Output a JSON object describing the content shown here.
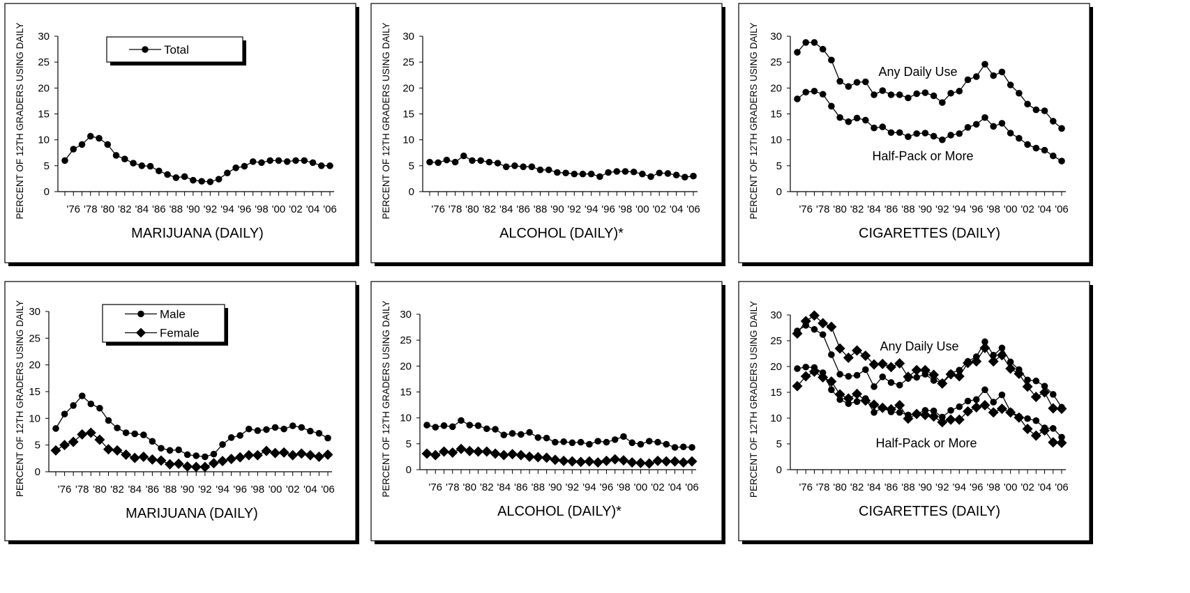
{
  "years_all": [
    1975,
    1976,
    1977,
    1978,
    1979,
    1980,
    1981,
    1982,
    1983,
    1984,
    1985,
    1986,
    1987,
    1988,
    1989,
    1990,
    1991,
    1992,
    1993,
    1994,
    1995,
    1996,
    1997,
    1998,
    1999,
    2000,
    2001,
    2002,
    2003,
    2004,
    2005,
    2006
  ],
  "x_tick_labels": [
    "'76",
    "'78",
    "'80",
    "'82",
    "'84",
    "'86",
    "'88",
    "'90",
    "'92",
    "'94",
    "'96",
    "'98",
    "'00",
    "'02",
    "'04",
    "'06"
  ],
  "y_ticks": [
    0,
    5,
    10,
    15,
    20,
    25,
    30
  ],
  "chart_data": [
    {
      "type": "line",
      "title": "MARIJUANA (DAILY)",
      "ylabel": "PERCENT OF 12TH GRADERS USING DAILY",
      "ylim": [
        0,
        30
      ],
      "x": [
        1975,
        1976,
        1977,
        1978,
        1979,
        1980,
        1981,
        1982,
        1983,
        1984,
        1985,
        1986,
        1987,
        1988,
        1989,
        1990,
        1991,
        1992,
        1993,
        1994,
        1995,
        1996,
        1997,
        1998,
        1999,
        2000,
        2001,
        2002,
        2003,
        2004,
        2005,
        2006
      ],
      "legend": "top-center",
      "series": [
        {
          "name": "Total",
          "marker": "circle",
          "values": [
            6.0,
            8.2,
            9.1,
            10.7,
            10.3,
            9.1,
            7.0,
            6.3,
            5.5,
            5.0,
            4.9,
            4.0,
            3.3,
            2.7,
            2.9,
            2.2,
            2.0,
            1.9,
            2.4,
            3.6,
            4.6,
            4.9,
            5.8,
            5.6,
            6.0,
            6.0,
            5.8,
            6.0,
            6.0,
            5.6,
            5.0,
            5.0
          ]
        }
      ]
    },
    {
      "type": "line",
      "title": "ALCOHOL (DAILY)*",
      "ylabel": "PERCENT OF 12TH GRADERS USING DAILY",
      "ylim": [
        0,
        30
      ],
      "x": [
        1975,
        1976,
        1977,
        1978,
        1979,
        1980,
        1981,
        1982,
        1983,
        1984,
        1985,
        1986,
        1987,
        1988,
        1989,
        1990,
        1991,
        1992,
        1993,
        1994,
        1995,
        1996,
        1997,
        1998,
        1999,
        2000,
        2001,
        2002,
        2003,
        2004,
        2005,
        2006
      ],
      "series": [
        {
          "name": "",
          "marker": "circle",
          "values": [
            5.7,
            5.6,
            6.1,
            5.7,
            6.9,
            6.0,
            6.0,
            5.7,
            5.5,
            4.8,
            5.0,
            4.8,
            4.8,
            4.2,
            4.2,
            3.7,
            3.6,
            3.4,
            3.4,
            3.4,
            2.9,
            3.7,
            3.9,
            3.9,
            3.8,
            3.4,
            2.9,
            3.6,
            3.5,
            3.2,
            2.8,
            3.0
          ]
        }
      ]
    },
    {
      "type": "line",
      "title": "CIGARETTES (DAILY)",
      "ylabel": "PERCENT OF 12TH GRADERS USING DAILY",
      "ylim": [
        0,
        30
      ],
      "x": [
        1975,
        1976,
        1977,
        1978,
        1979,
        1980,
        1981,
        1982,
        1983,
        1984,
        1985,
        1986,
        1987,
        1988,
        1989,
        1990,
        1991,
        1992,
        1993,
        1994,
        1995,
        1996,
        1997,
        1998,
        1999,
        2000,
        2001,
        2002,
        2003,
        2004,
        2005,
        2006
      ],
      "annotations": [
        "Any Daily Use",
        "Half-Pack or More"
      ],
      "series": [
        {
          "name": "Any Daily Use",
          "marker": "circle",
          "values": [
            26.9,
            28.8,
            28.8,
            27.5,
            25.4,
            21.3,
            20.3,
            21.1,
            21.2,
            18.7,
            19.5,
            18.7,
            18.7,
            18.1,
            18.9,
            19.1,
            18.5,
            17.2,
            19.0,
            19.4,
            21.6,
            22.2,
            24.6,
            22.4,
            23.1,
            20.6,
            19.0,
            16.9,
            15.8,
            15.6,
            13.6,
            12.2
          ]
        },
        {
          "name": "Half-Pack or More",
          "marker": "circle",
          "values": [
            17.9,
            19.2,
            19.4,
            18.8,
            16.5,
            14.3,
            13.5,
            14.2,
            13.8,
            12.3,
            12.5,
            11.4,
            11.4,
            10.6,
            11.2,
            11.3,
            10.7,
            10.0,
            10.9,
            11.2,
            12.4,
            13.0,
            14.3,
            12.6,
            13.2,
            11.3,
            10.3,
            9.1,
            8.4,
            8.0,
            6.9,
            5.9
          ]
        }
      ]
    },
    {
      "type": "line",
      "title": "MARIJUANA (DAILY)",
      "ylabel": "PERCENT OF 12TH GRADERS USING DAILY",
      "ylim": [
        0,
        30
      ],
      "x": [
        1975,
        1976,
        1977,
        1978,
        1979,
        1980,
        1981,
        1982,
        1983,
        1984,
        1985,
        1986,
        1987,
        1988,
        1989,
        1990,
        1991,
        1992,
        1993,
        1994,
        1995,
        1996,
        1997,
        1998,
        1999,
        2000,
        2001,
        2002,
        2003,
        2004,
        2005,
        2006
      ],
      "legend": "top-left",
      "series": [
        {
          "name": "Male",
          "marker": "circle",
          "values": [
            8.1,
            10.8,
            12.4,
            14.2,
            12.7,
            11.9,
            9.6,
            8.2,
            7.3,
            7.1,
            6.9,
            5.7,
            4.4,
            4.0,
            4.1,
            3.2,
            3.0,
            2.8,
            3.3,
            5.1,
            6.4,
            6.8,
            8.0,
            7.7,
            7.9,
            8.3,
            8.0,
            8.6,
            8.3,
            7.6,
            7.2,
            6.3
          ]
        },
        {
          "name": "Female",
          "marker": "diamond",
          "values": [
            4.0,
            5.0,
            5.6,
            7.0,
            7.3,
            6.0,
            4.2,
            4.0,
            3.2,
            2.6,
            2.8,
            2.3,
            2.1,
            1.4,
            1.5,
            1.0,
            0.9,
            0.9,
            1.6,
            2.0,
            2.4,
            2.7,
            3.1,
            3.1,
            3.9,
            3.5,
            3.6,
            3.1,
            3.4,
            3.1,
            2.8,
            3.2
          ]
        }
      ]
    },
    {
      "type": "line",
      "title": "ALCOHOL (DAILY)*",
      "ylabel": "PERCENT OF 12TH GRADERS USING DAILY",
      "ylim": [
        0,
        30
      ],
      "x": [
        1975,
        1976,
        1977,
        1978,
        1979,
        1980,
        1981,
        1982,
        1983,
        1984,
        1985,
        1986,
        1987,
        1988,
        1989,
        1990,
        1991,
        1992,
        1993,
        1994,
        1995,
        1996,
        1997,
        1998,
        1999,
        2000,
        2001,
        2002,
        2003,
        2004,
        2005,
        2006
      ],
      "series": [
        {
          "name": "",
          "marker": "circle",
          "values": [
            8.6,
            8.2,
            8.5,
            8.3,
            9.5,
            8.6,
            8.5,
            7.9,
            7.8,
            6.7,
            7.0,
            6.8,
            7.2,
            6.2,
            6.1,
            5.3,
            5.4,
            5.2,
            5.3,
            4.9,
            5.5,
            5.3,
            5.8,
            6.4,
            5.2,
            4.9,
            5.5,
            5.3,
            4.9,
            4.3,
            4.4,
            4.3
          ]
        },
        {
          "name": "",
          "marker": "diamond",
          "values": [
            3.1,
            2.8,
            3.5,
            3.3,
            4.0,
            3.6,
            3.5,
            3.5,
            3.1,
            2.8,
            3.0,
            2.8,
            2.5,
            2.4,
            2.3,
            1.9,
            1.7,
            1.6,
            1.5,
            1.6,
            1.4,
            1.7,
            2.0,
            1.8,
            1.4,
            1.3,
            1.2,
            1.7,
            1.6,
            1.6,
            1.4,
            1.6
          ]
        }
      ]
    },
    {
      "type": "line",
      "title": "CIGARETTES (DAILY)",
      "ylabel": "PERCENT OF 12TH GRADERS USING DAILY",
      "ylim": [
        0,
        30
      ],
      "x": [
        1975,
        1976,
        1977,
        1978,
        1979,
        1980,
        1981,
        1982,
        1983,
        1984,
        1985,
        1986,
        1987,
        1988,
        1989,
        1990,
        1991,
        1992,
        1993,
        1994,
        1995,
        1996,
        1997,
        1998,
        1999,
        2000,
        2001,
        2002,
        2003,
        2004,
        2005,
        2006
      ],
      "annotations": [
        "Any Daily Use",
        "Half-Pack or More"
      ],
      "series": [
        {
          "name": "",
          "marker": "circle",
          "values": [
            26.9,
            28.0,
            27.2,
            26.2,
            22.3,
            18.5,
            18.1,
            18.3,
            19.4,
            16.1,
            18.0,
            16.9,
            16.4,
            17.7,
            17.9,
            18.5,
            17.3,
            16.9,
            18.7,
            19.3,
            21.0,
            21.9,
            24.8,
            22.2,
            23.6,
            20.9,
            19.4,
            17.4,
            17.2,
            16.2,
            14.6,
            12.1
          ]
        },
        {
          "name": "",
          "marker": "diamond",
          "values": [
            26.4,
            28.8,
            29.9,
            28.4,
            27.7,
            23.5,
            21.7,
            23.1,
            22.1,
            20.4,
            20.5,
            19.9,
            20.6,
            18.0,
            19.3,
            19.3,
            18.4,
            16.7,
            18.5,
            18.1,
            20.7,
            21.0,
            23.6,
            21.0,
            22.2,
            19.6,
            18.6,
            16.1,
            14.1,
            15.0,
            11.9,
            11.8
          ]
        },
        {
          "name": "",
          "marker": "circle",
          "values": [
            19.6,
            19.9,
            19.8,
            18.8,
            15.5,
            13.6,
            12.8,
            13.2,
            13.8,
            11.1,
            12.0,
            11.2,
            11.1,
            10.6,
            10.8,
            11.5,
            11.4,
            10.2,
            11.5,
            12.2,
            13.3,
            13.6,
            15.5,
            13.1,
            14.5,
            11.3,
            10.3,
            9.9,
            9.5,
            8.1,
            8.0,
            6.3
          ]
        },
        {
          "name": "",
          "marker": "diamond",
          "values": [
            16.2,
            18.1,
            19.0,
            17.9,
            17.1,
            14.6,
            13.8,
            14.7,
            13.4,
            12.6,
            12.0,
            11.7,
            12.5,
            9.9,
            10.8,
            10.6,
            10.3,
            9.2,
            9.7,
            9.7,
            11.3,
            12.1,
            12.5,
            11.1,
            11.8,
            11.1,
            10.1,
            7.9,
            6.6,
            7.6,
            5.3,
            5.2
          ]
        }
      ]
    }
  ]
}
